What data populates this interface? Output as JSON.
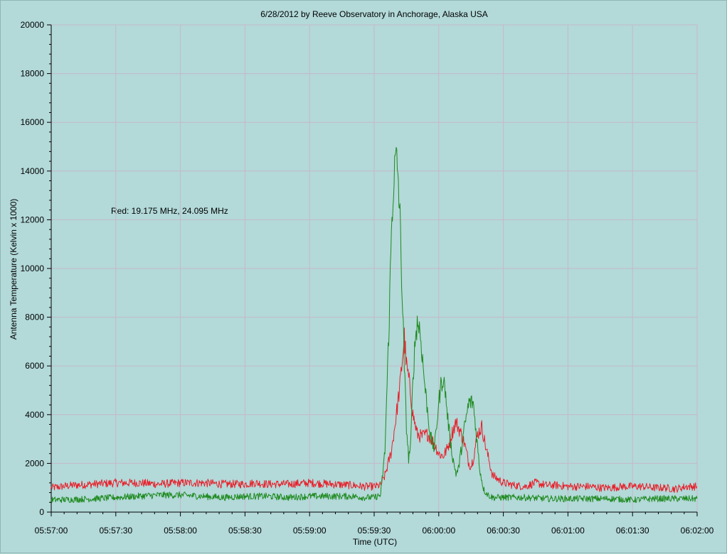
{
  "chart_data": {
    "type": "line",
    "title": "6/28/2012  by  Reeve Observatory  in  Anchorage, Alaska  USA",
    "xlabel": "Time (UTC)",
    "ylabel": "Antenna Temperature (Kelvin x 1000)",
    "annotation": "Red: 19.175 MHz, 24.095 MHz",
    "xlim": [
      0,
      300
    ],
    "ylim": [
      0,
      20000
    ],
    "x_ticks": [
      {
        "v": 0,
        "label": "05:57:00"
      },
      {
        "v": 30,
        "label": "05:57:30"
      },
      {
        "v": 60,
        "label": "05:58:00"
      },
      {
        "v": 90,
        "label": "05:58:30"
      },
      {
        "v": 120,
        "label": "05:59:00"
      },
      {
        "v": 150,
        "label": "05:59:30"
      },
      {
        "v": 180,
        "label": "06:00:00"
      },
      {
        "v": 210,
        "label": "06:00:30"
      },
      {
        "v": 240,
        "label": "06:01:00"
      },
      {
        "v": 270,
        "label": "06:01:30"
      },
      {
        "v": 300,
        "label": "06:02:00"
      }
    ],
    "y_ticks": [
      {
        "v": 0,
        "label": "0"
      },
      {
        "v": 2000,
        "label": "2000"
      },
      {
        "v": 4000,
        "label": "4000"
      },
      {
        "v": 6000,
        "label": "6000"
      },
      {
        "v": 8000,
        "label": "8000"
      },
      {
        "v": 10000,
        "label": "10000"
      },
      {
        "v": 12000,
        "label": "12000"
      },
      {
        "v": 14000,
        "label": "14000"
      },
      {
        "v": 16000,
        "label": "16000"
      },
      {
        "v": 18000,
        "label": "18000"
      },
      {
        "v": 20000,
        "label": "20000"
      }
    ],
    "grid": true,
    "colors": {
      "background": "#b3d9d9",
      "plot_area": "#b3d9d9",
      "grid": "#c4b9c9",
      "red_series": "#e8202a",
      "green_series": "#1e8a1e"
    },
    "series": [
      {
        "color": "red",
        "x": [
          0,
          5,
          10,
          20,
          30,
          40,
          50,
          60,
          70,
          80,
          90,
          95,
          100,
          110,
          120,
          130,
          140,
          145,
          150,
          153,
          155,
          158,
          160,
          162,
          163,
          164,
          165,
          166,
          167,
          168,
          170,
          172,
          175,
          178,
          180,
          182,
          184,
          186,
          188,
          190,
          192,
          194,
          195,
          196,
          198,
          200,
          202,
          205,
          210,
          215,
          220,
          225,
          230,
          235,
          240,
          245,
          250,
          255,
          260,
          265,
          270,
          275,
          280,
          285,
          290,
          295,
          300
        ],
        "y": [
          1000,
          1050,
          1100,
          1150,
          1200,
          1200,
          1150,
          1200,
          1200,
          1150,
          1150,
          1200,
          1150,
          1150,
          1200,
          1150,
          1100,
          1050,
          1050,
          1100,
          1500,
          2500,
          3800,
          5200,
          6200,
          7200,
          6000,
          5500,
          4800,
          4000,
          3200,
          3100,
          3200,
          2800,
          2400,
          2300,
          2600,
          3200,
          3700,
          3300,
          2800,
          2000,
          1900,
          2200,
          3200,
          3500,
          2600,
          1500,
          1200,
          1100,
          1050,
          1200,
          1100,
          1100,
          1050,
          1050,
          1050,
          1000,
          1000,
          1050,
          1050,
          1050,
          1000,
          1000,
          950,
          1050,
          1050
        ]
      },
      {
        "color": "green",
        "x": [
          0,
          10,
          20,
          30,
          40,
          50,
          60,
          70,
          80,
          90,
          100,
          110,
          120,
          130,
          140,
          145,
          150,
          153,
          155,
          157,
          158,
          159,
          160,
          161,
          162,
          163,
          164,
          165,
          166,
          167,
          168,
          169,
          170,
          171,
          172,
          173,
          174,
          175,
          176,
          177,
          178,
          180,
          181,
          182,
          183,
          184,
          185,
          186,
          187,
          188,
          189,
          190,
          192,
          194,
          196,
          197,
          198,
          199,
          200,
          201,
          203,
          205,
          210,
          220,
          230,
          240,
          250,
          260,
          270,
          280,
          290,
          300
        ],
        "y": [
          500,
          520,
          550,
          600,
          650,
          700,
          700,
          650,
          600,
          650,
          650,
          600,
          650,
          650,
          650,
          600,
          600,
          700,
          2500,
          8000,
          11500,
          13500,
          14500,
          14000,
          12000,
          9000,
          6000,
          3500,
          2200,
          2800,
          5500,
          7000,
          7800,
          7600,
          6800,
          5700,
          4800,
          4000,
          3200,
          2800,
          2600,
          4500,
          5200,
          5500,
          5000,
          4000,
          3200,
          2500,
          2000,
          1600,
          1700,
          2300,
          3500,
          4500,
          4500,
          3600,
          2700,
          1800,
          1300,
          900,
          700,
          600,
          600,
          600,
          550,
          550,
          550,
          550,
          500,
          550,
          550,
          550
        ]
      }
    ]
  }
}
